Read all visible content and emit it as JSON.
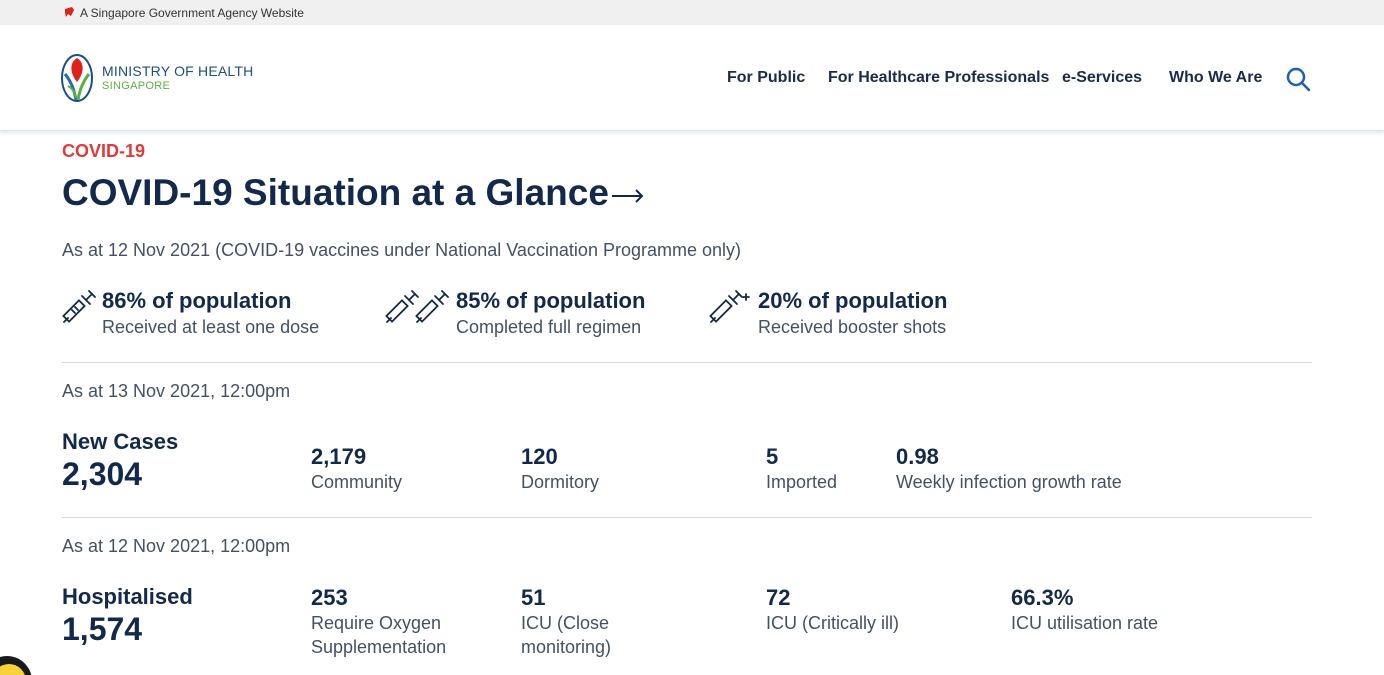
{
  "gov_bar": {
    "text": "A Singapore Government Agency Website"
  },
  "logo": {
    "line1": "MINISTRY OF HEALTH",
    "line2": "SINGAPORE"
  },
  "nav": [
    {
      "label": "For Public"
    },
    {
      "label": "For Healthcare Professionals"
    },
    {
      "label": "e-Services"
    },
    {
      "label": "Who We Are"
    }
  ],
  "section": {
    "eyebrow": "COVID-19",
    "title": "COVID-19 Situation at a Glance",
    "vaccination_asat": "As at 12 Nov 2021 (COVID-19 vaccines under National Vaccination Programme only)"
  },
  "vaccination": [
    {
      "headline": "86% of population",
      "label": "Received at least one dose",
      "icon": "syringe-icon"
    },
    {
      "headline": "85% of population",
      "label": "Completed full regimen",
      "icon": "double-syringe-icon"
    },
    {
      "headline": "20% of population",
      "label": "Received booster shots",
      "icon": "booster-syringe-icon"
    }
  ],
  "cases": {
    "asat": "As at 13 Nov 2021, 12:00pm",
    "heading": "New Cases",
    "total": "2,304",
    "items": [
      {
        "value": "2,179",
        "label": "Community"
      },
      {
        "value": "120",
        "label": "Dormitory"
      },
      {
        "value": "5",
        "label": "Imported"
      },
      {
        "value": "0.98",
        "label": "Weekly infection growth rate"
      }
    ]
  },
  "hospital": {
    "asat": "As at 12 Nov 2021, 12:00pm",
    "heading": "Hospitalised",
    "total": "1,574",
    "items": [
      {
        "value": "253",
        "label_line1": "Require Oxygen",
        "label_line2": "Supplementation"
      },
      {
        "value": "51",
        "label_line1": "ICU (Close",
        "label_line2": "monitoring)"
      },
      {
        "value": "72",
        "label_line1": "ICU (Critically ill)",
        "label_line2": ""
      },
      {
        "value": "66.3%",
        "label_line1": "ICU utilisation rate",
        "label_line2": ""
      }
    ]
  },
  "colors": {
    "accent_red": "#e03a3a",
    "navy": "#13294b",
    "nav_blue": "#1f5fb0",
    "logo_green": "#5bb041"
  }
}
